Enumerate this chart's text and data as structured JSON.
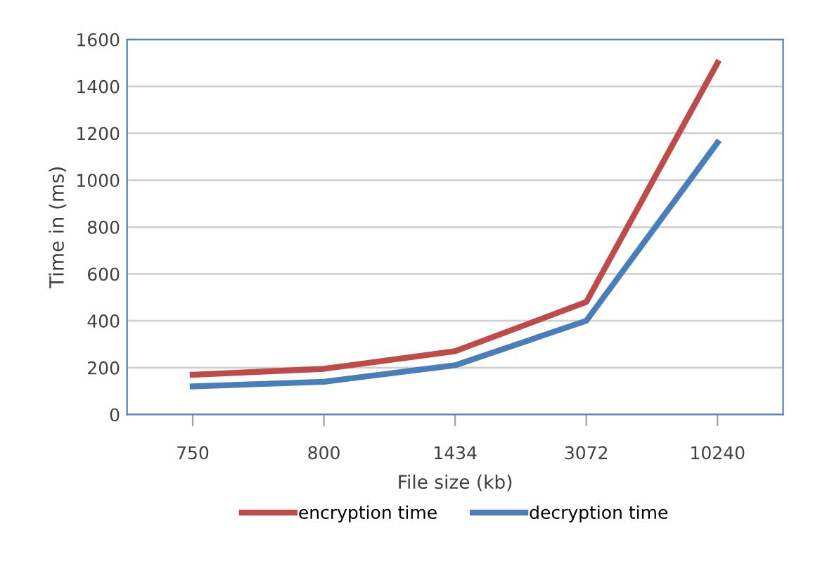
{
  "chart_data": {
    "type": "line",
    "xlabel": "File size (kb)",
    "ylabel": "Time in (ms)",
    "categories": [
      "750",
      "800",
      "1434",
      "3072",
      "10240"
    ],
    "series": [
      {
        "name": "encryption time",
        "color": "#be4b48",
        "values": [
          170,
          195,
          270,
          480,
          1500
        ]
      },
      {
        "name": "decryption time",
        "color": "#4a7ebb",
        "values": [
          120,
          140,
          210,
          400,
          1160
        ]
      }
    ],
    "ylim": [
      0,
      1600
    ],
    "yticks": [
      0,
      200,
      400,
      600,
      800,
      1000,
      1200,
      1400,
      1600
    ],
    "grid": "y",
    "legend": "bottom",
    "marker": "none",
    "line_style": "solid"
  }
}
